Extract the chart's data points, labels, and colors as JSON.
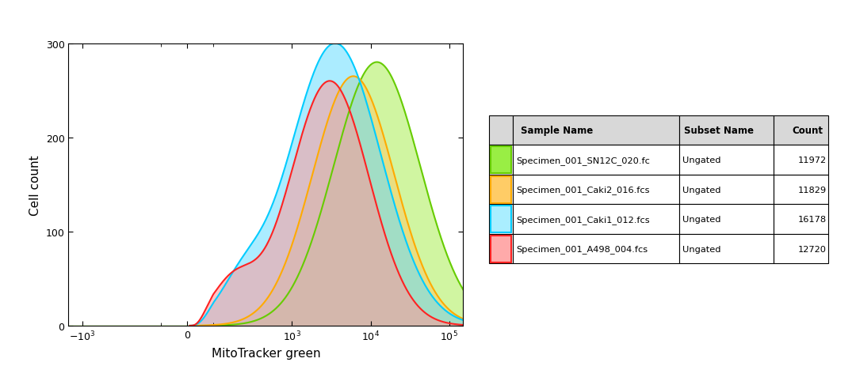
{
  "xlabel": "MitoTracker green",
  "ylabel": "Cell count",
  "ylim": [
    0,
    300
  ],
  "background_color": "#ffffff",
  "series": [
    {
      "label": "SN12C",
      "color": "#66cc00",
      "fill_color": "#aaee55",
      "peak_log": 4.08,
      "peak_y": 280,
      "sigma": 0.55,
      "has_shoulder": false,
      "shoulder_log": 2.3,
      "shoulder_y": 0
    },
    {
      "label": "Caki2",
      "color": "#ffaa00",
      "fill_color": "#ffcc66",
      "peak_log": 3.78,
      "peak_y": 265,
      "sigma": 0.52,
      "has_shoulder": false,
      "shoulder_log": 2.3,
      "shoulder_y": 0
    },
    {
      "label": "Caki1",
      "color": "#00ccff",
      "fill_color": "#66ddff",
      "peak_log": 3.55,
      "peak_y": 300,
      "sigma": 0.58,
      "has_shoulder": true,
      "shoulder_log": 2.35,
      "shoulder_y": 35
    },
    {
      "label": "A498",
      "color": "#ff2222",
      "fill_color": "#ff9999",
      "peak_log": 3.48,
      "peak_y": 260,
      "sigma": 0.5,
      "has_shoulder": true,
      "shoulder_log": 2.25,
      "shoulder_y": 45
    }
  ],
  "table_rows": [
    {
      "fill_color": "#99ee44",
      "border_color": "#66cc00",
      "sample": "Specimen_001_SN12C_020.fc",
      "subset": "Ungated",
      "count": "11972"
    },
    {
      "fill_color": "#ffcc66",
      "border_color": "#ffaa00",
      "sample": "Specimen_001_Caki2_016.fcs",
      "subset": "Ungated",
      "count": "11829"
    },
    {
      "fill_color": "#aaeeff",
      "border_color": "#00ccff",
      "sample": "Specimen_001_Caki1_012.fcs",
      "subset": "Ungated",
      "count": "16178"
    },
    {
      "fill_color": "#ffaaaa",
      "border_color": "#ff2222",
      "sample": "Specimen_001_A498_004.fcs",
      "subset": "Ungated",
      "count": "12720"
    }
  ],
  "xticks": [
    -1000,
    0,
    1000,
    10000,
    100000
  ],
  "xtick_labels": [
    "-10$^3$",
    "0",
    "10$^3$",
    "10$^4$",
    "10$^5$"
  ],
  "yticks": [
    0,
    100,
    200,
    300
  ]
}
